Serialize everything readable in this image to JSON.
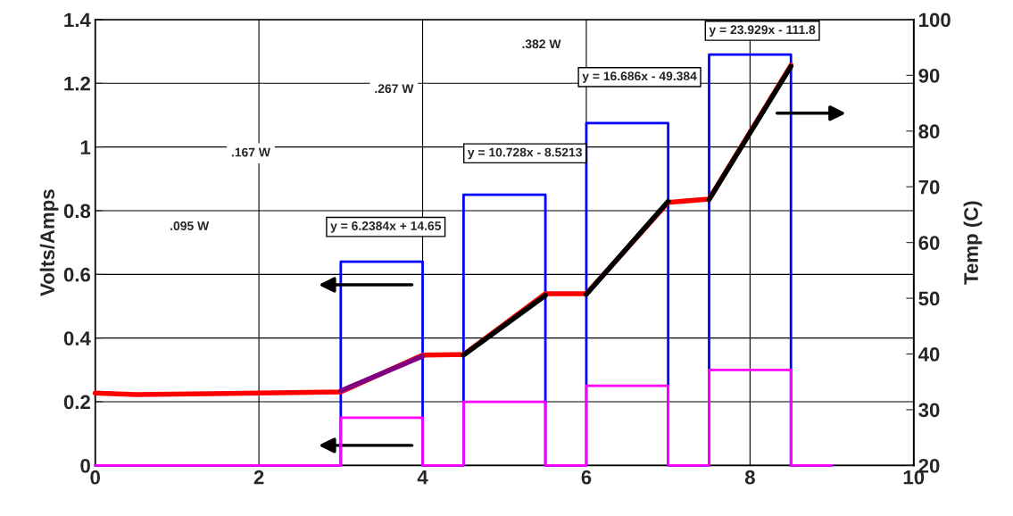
{
  "chart_data": {
    "type": "line",
    "xlim": [
      0,
      10
    ],
    "xticks": [
      0,
      2,
      4,
      6,
      8,
      10
    ],
    "ylim": [
      0,
      1.4
    ],
    "yticks": [
      0,
      0.2,
      0.4,
      0.6,
      0.8,
      1,
      1.2,
      1.4
    ],
    "y2lim": [
      20,
      100
    ],
    "y2ticks": [
      20,
      30,
      40,
      50,
      60,
      70,
      80,
      90,
      100
    ],
    "ylabel": "Volts/Amps",
    "y2label": "Temp (C)",
    "grid": true,
    "legend": false,
    "marker": "none",
    "line_style": "solid",
    "series": [
      {
        "color": "#0000ff",
        "x": [
          0,
          3,
          3,
          4,
          4,
          4.5,
          4.5,
          5.5,
          5.5,
          6,
          6,
          7,
          7,
          7.5,
          7.5,
          8.5,
          8.5,
          9
        ],
        "values": [
          0,
          0,
          0.64,
          0.64,
          0,
          0,
          0.85,
          0.85,
          0,
          0,
          1.075,
          1.075,
          0,
          0,
          1.29,
          1.29,
          0,
          0
        ]
      },
      {
        "color": "#ff00ff",
        "x": [
          0,
          3,
          3,
          4,
          4,
          4.5,
          4.5,
          5.5,
          5.5,
          6,
          6,
          7,
          7,
          7.5,
          7.5,
          8.5,
          8.5,
          9
        ],
        "values": [
          0,
          0,
          0.15,
          0.15,
          0,
          0,
          0.2,
          0.2,
          0,
          0,
          0.25,
          0.25,
          0,
          0,
          0.3,
          0.3,
          0,
          0
        ]
      },
      {
        "color": "#ff0000",
        "axis": "y2",
        "x": [
          0,
          0.5,
          3,
          4,
          4.5,
          5.5,
          6,
          7,
          7.5,
          8.5
        ],
        "values": [
          33,
          32.7,
          33.2,
          39.8,
          39.9,
          50.8,
          50.8,
          67.2,
          67.8,
          91.8
        ]
      },
      {
        "color": "#800080",
        "axis": "y2",
        "x": [
          3,
          4
        ],
        "values": [
          33.4,
          39.6
        ]
      },
      {
        "color": "#000000",
        "axis": "y2",
        "x": [
          4.5,
          5.5
        ],
        "values": [
          39.8,
          50.5
        ]
      },
      {
        "color": "#000000",
        "axis": "y2",
        "x": [
          6,
          7
        ],
        "values": [
          50.7,
          67.4
        ]
      },
      {
        "color": "#000000",
        "axis": "y2",
        "x": [
          7.5,
          8.5
        ],
        "values": [
          67.7,
          91.6
        ]
      }
    ],
    "annotations": [
      ".095 W",
      ".167 W",
      ".267 W",
      ".382 W",
      "y = 6.2384x + 14.65",
      "y = 10.728x - 8.5213",
      "y = 16.686x - 49.384",
      "y = 23.929x - 111.8"
    ]
  }
}
